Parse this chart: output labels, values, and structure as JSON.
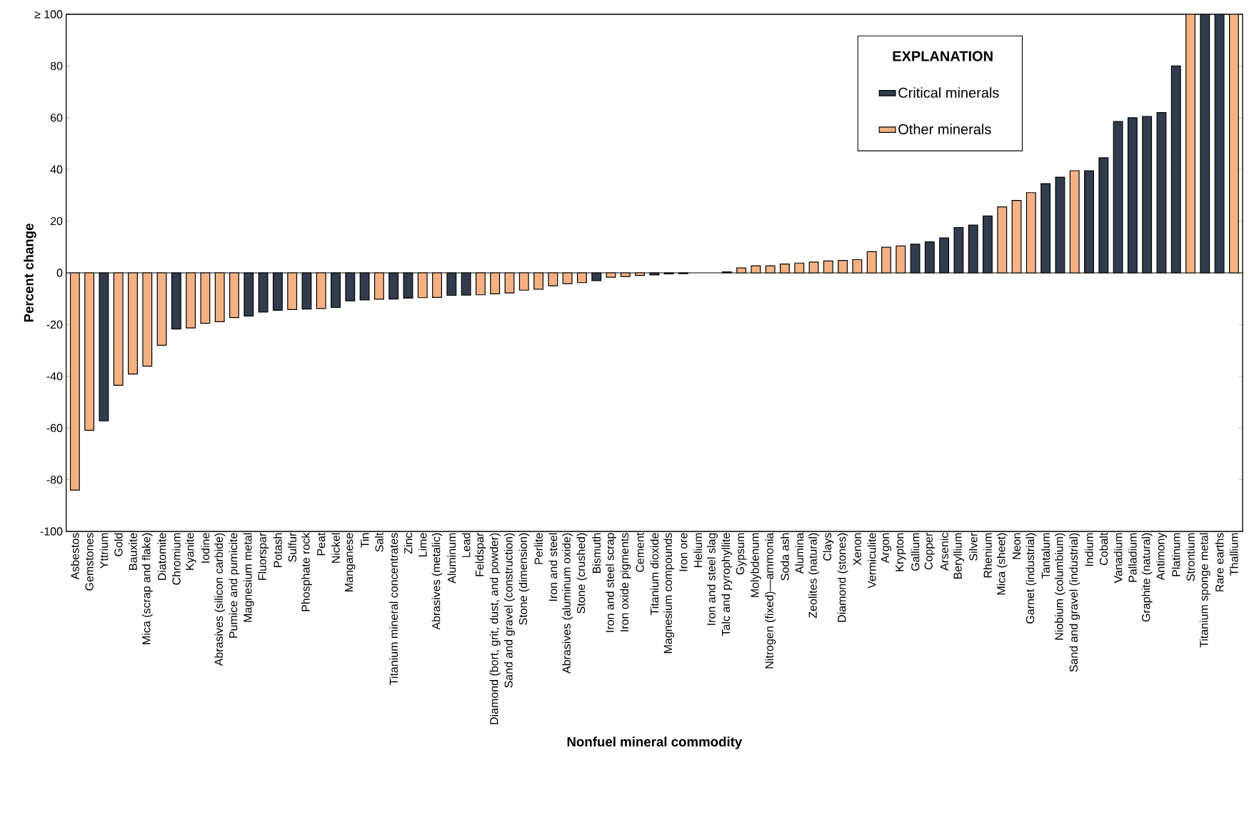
{
  "chart_data": {
    "type": "bar",
    "xlabel": "Nonfuel mineral commodity",
    "ylabel": "Percent change",
    "legend_title": "EXPLANATION",
    "categories": [
      "Asbestos",
      "Gemstones",
      "Yttrium",
      "Gold",
      "Bauxite",
      "Mica (scrap and flake)",
      "Diatomite",
      "Chromium",
      "Kyanite",
      "Iodine",
      "Abrasives (silicon carbide)",
      "Pumice and pumicite",
      "Magnesium metal",
      "Fluorspar",
      "Potash",
      "Sulfur",
      "Phosphate rock",
      "Peat",
      "Nickel",
      "Manganese",
      "Tin",
      "Salt",
      "Titanium mineral concentrates",
      "Zinc",
      "Lime",
      "Abrasives (metalic)",
      "Aluminum",
      "Lead",
      "Feldspar",
      "Diamond (bort, grit, dust, and powder)",
      "Sand and gravel (construction)",
      "Stone (dimension)",
      "Perlite",
      "Iron and steel",
      "Abrasives (aluminum oxide)",
      "Stone (crushed)",
      "Bismuth",
      "Iron and steel scrap",
      "Iron oxide pigments",
      "Cement",
      "Titanium dioxide",
      "Magnesium compounds",
      "Iron ore",
      "Helium",
      "Iron and steel slag",
      "Talc and pyrophyllite",
      "Gypsum",
      "Molybdenum",
      "Nitrogen (fixed)—ammonia",
      "Soda ash",
      "Alumina",
      "Zeolites (natural)",
      "Clays",
      "Diamond (stones)",
      "Xenon",
      "Vermiculite",
      "Argon",
      "Krypton",
      "Gallium",
      "Copper",
      "Arsenic",
      "Beryllium",
      "Silver",
      "Rhenium",
      "Mica (sheet)",
      "Neon",
      "Garnet (industrial)",
      "Tantalum",
      "Niobium (columbium)",
      "Sand and gravel (industrial)",
      "Indium",
      "Cobalt",
      "Vanadium",
      "Palladium",
      "Graphite (natural)",
      "Antimony",
      "Platinum",
      "Strontium",
      "Titanium sponge metal",
      "Rare earths",
      "Thallium"
    ],
    "series": [
      {
        "name": "Critical minerals",
        "color": "#323c4e",
        "values": [
          null,
          null,
          -57.2,
          null,
          null,
          null,
          null,
          -21.7,
          null,
          null,
          null,
          null,
          -16.7,
          -15.2,
          -14.5,
          null,
          -14.0,
          null,
          -13.4,
          -10.8,
          -10.5,
          null,
          -10.1,
          -9.8,
          null,
          null,
          -8.7,
          -8.6,
          null,
          null,
          null,
          null,
          null,
          null,
          null,
          null,
          -3.0,
          null,
          null,
          null,
          -0.8,
          -0.4,
          -0.3,
          null,
          null,
          0.4,
          null,
          null,
          null,
          null,
          null,
          null,
          null,
          null,
          null,
          null,
          null,
          null,
          11.1,
          12,
          13.5,
          17.5,
          18.5,
          22,
          null,
          null,
          null,
          34.5,
          37,
          null,
          39.5,
          44.5,
          58.5,
          60,
          60.5,
          62,
          80,
          null,
          100,
          100,
          null
        ]
      },
      {
        "name": "Other minerals",
        "color": "#f4b183",
        "values": [
          -84.0,
          -60.9,
          null,
          -43.5,
          -39.1,
          -36.1,
          -28.0,
          null,
          -21.3,
          -19.5,
          -18.9,
          -17.3,
          null,
          null,
          null,
          -14.2,
          null,
          -13.8,
          null,
          null,
          null,
          -10.2,
          null,
          null,
          -9.6,
          -9.5,
          null,
          null,
          -8.5,
          -8.1,
          -7.8,
          -6.7,
          -6.3,
          -5.0,
          -4.2,
          -3.8,
          null,
          -1.7,
          -1.4,
          -1.0,
          null,
          null,
          null,
          null,
          null,
          null,
          1.9,
          2.7,
          2.7,
          3.4,
          3.8,
          4.2,
          4.6,
          4.8,
          5.1,
          8.2,
          9.9,
          10.4,
          null,
          null,
          null,
          null,
          null,
          null,
          25.5,
          28,
          31,
          null,
          null,
          39.5,
          null,
          null,
          null,
          null,
          null,
          null,
          null,
          100,
          null,
          null,
          100
        ]
      }
    ],
    "ylim": [
      -100,
      100
    ],
    "yticks": [
      -100,
      -80,
      -60,
      -40,
      -20,
      0,
      20,
      40,
      60,
      80,
      {
        "value": 100,
        "label": "≥ 100"
      }
    ],
    "legend": "top right"
  }
}
